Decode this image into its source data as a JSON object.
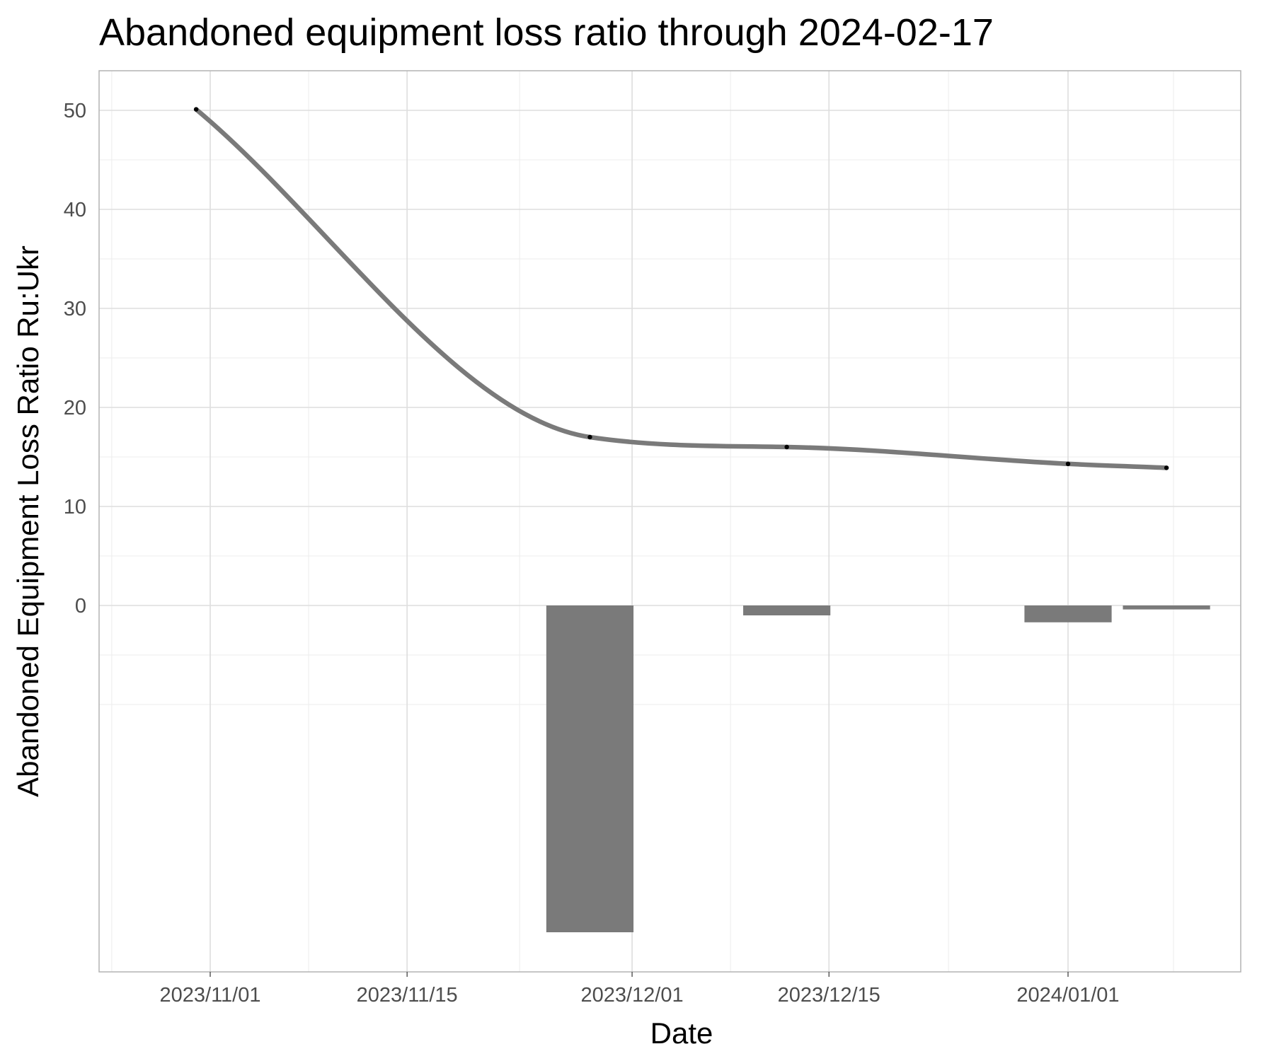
{
  "chart_data": {
    "type": "line",
    "title": "Abandoned equipment loss ratio through 2024-02-17",
    "xlabel": "Date",
    "ylabel": "Abandoned Equipment Loss Ratio Ru:Ukr",
    "x_type": "date",
    "x_ticks": [
      "2023/11/01",
      "2023/11/15",
      "2023/12/01",
      "2023/12/15",
      "2024/01/01"
    ],
    "y_ticks": [
      0,
      10,
      20,
      30,
      40,
      50
    ],
    "ylim": [
      -37,
      54
    ],
    "grid": true,
    "legend": "none",
    "series": [
      {
        "kind": "line-with-points",
        "color": "#7a7a7a",
        "point_color": "#000000",
        "x": [
          "2023-10-31",
          "2023-11-28",
          "2023-12-12",
          "2024-01-01",
          "2024-01-08"
        ],
        "y": [
          50.1,
          17.0,
          16.0,
          14.3,
          13.9
        ]
      },
      {
        "kind": "bar",
        "color": "#7a7a7a",
        "x": [
          "2023-11-28",
          "2023-12-12",
          "2024-01-01",
          "2024-01-08"
        ],
        "y": [
          -33.0,
          -1.0,
          -1.7,
          -0.4
        ]
      }
    ]
  }
}
